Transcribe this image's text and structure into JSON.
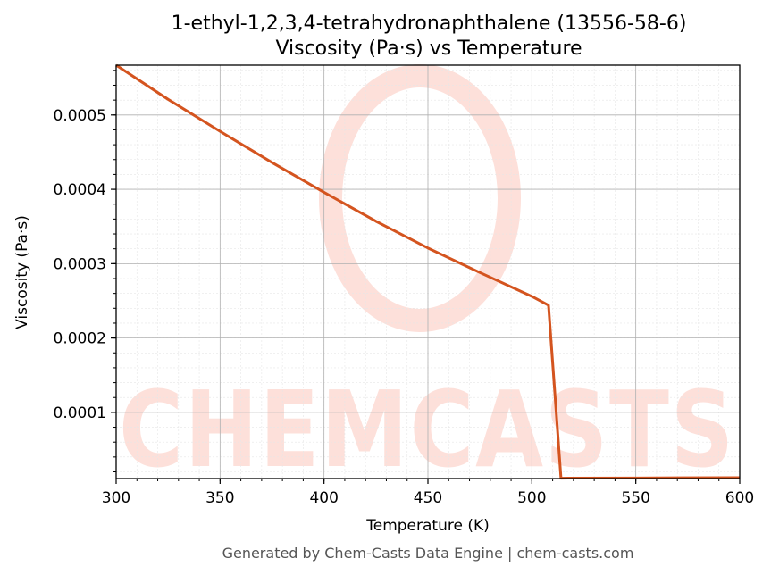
{
  "chart_data": {
    "type": "line",
    "title_line1": "1-ethyl-1,2,3,4-tetrahydronaphthalene (13556-58-6)",
    "title_line2": "Viscosity (Pa·s) vs Temperature",
    "xlabel": "Temperature (K)",
    "ylabel": "Viscosity (Pa·s)",
    "xlim": [
      300,
      600
    ],
    "ylim": [
      1.1e-05,
      0.000567
    ],
    "x_ticks": [
      300,
      350,
      400,
      450,
      500,
      550,
      600
    ],
    "x_tick_labels": [
      "300",
      "350",
      "400",
      "450",
      "500",
      "550",
      "600"
    ],
    "y_ticks": [
      0.0001,
      0.0002,
      0.0003,
      0.0004,
      0.0005
    ],
    "y_tick_labels": [
      "0.0001",
      "0.0002",
      "0.0003",
      "0.0004",
      "0.0005"
    ],
    "grid": true,
    "series": [
      {
        "color": "#d4541f",
        "x": [
          300,
          325,
          350,
          375,
          400,
          425,
          450,
          475,
          500,
          508,
          514,
          550,
          600
        ],
        "y": [
          0.000567,
          0.000521,
          0.000478,
          0.000436,
          0.000396,
          0.000357,
          0.000321,
          0.000288,
          0.000256,
          0.000244,
          1.15e-05,
          1.18e-05,
          1.22e-05
        ]
      }
    ]
  },
  "watermark": {
    "text": "CHEMCASTS",
    "color": "#fde0da"
  },
  "footer": "Generated by Chem-Casts Data Engine | chem-casts.com"
}
